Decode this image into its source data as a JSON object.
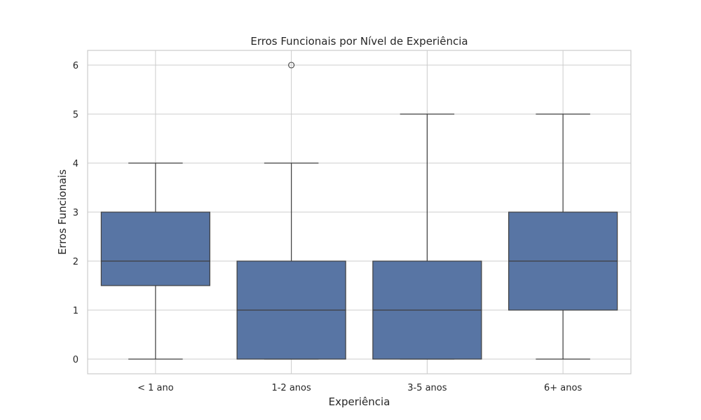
{
  "chart_data": {
    "type": "box",
    "title": "Erros Funcionais por Nível de Experiência",
    "xlabel": "Experiência",
    "ylabel": "Erros Funcionais",
    "categories": [
      "< 1 ano",
      "1-2 anos",
      "3-5 anos",
      "6+ anos"
    ],
    "boxes": [
      {
        "category": "< 1 ano",
        "whisker_low": 0,
        "q1": 1.5,
        "median": 2,
        "q3": 3,
        "whisker_high": 4,
        "outliers": []
      },
      {
        "category": "1-2 anos",
        "whisker_low": 0,
        "q1": 0,
        "median": 1,
        "q3": 2,
        "whisker_high": 4,
        "outliers": [
          6
        ]
      },
      {
        "category": "3-5 anos",
        "whisker_low": 0,
        "q1": 0,
        "median": 1,
        "q3": 2,
        "whisker_high": 5,
        "outliers": []
      },
      {
        "category": "6+ anos",
        "whisker_low": 0,
        "q1": 1,
        "median": 2,
        "q3": 3,
        "whisker_high": 5,
        "outliers": []
      }
    ],
    "yticks": [
      0,
      1,
      2,
      3,
      4,
      5,
      6
    ],
    "ylim": [
      -0.3,
      6.3
    ],
    "grid": true,
    "legend": "none",
    "colors": {
      "box_fill": "#5875a4",
      "line": "#3f3f3f",
      "grid": "#cccccc"
    }
  }
}
